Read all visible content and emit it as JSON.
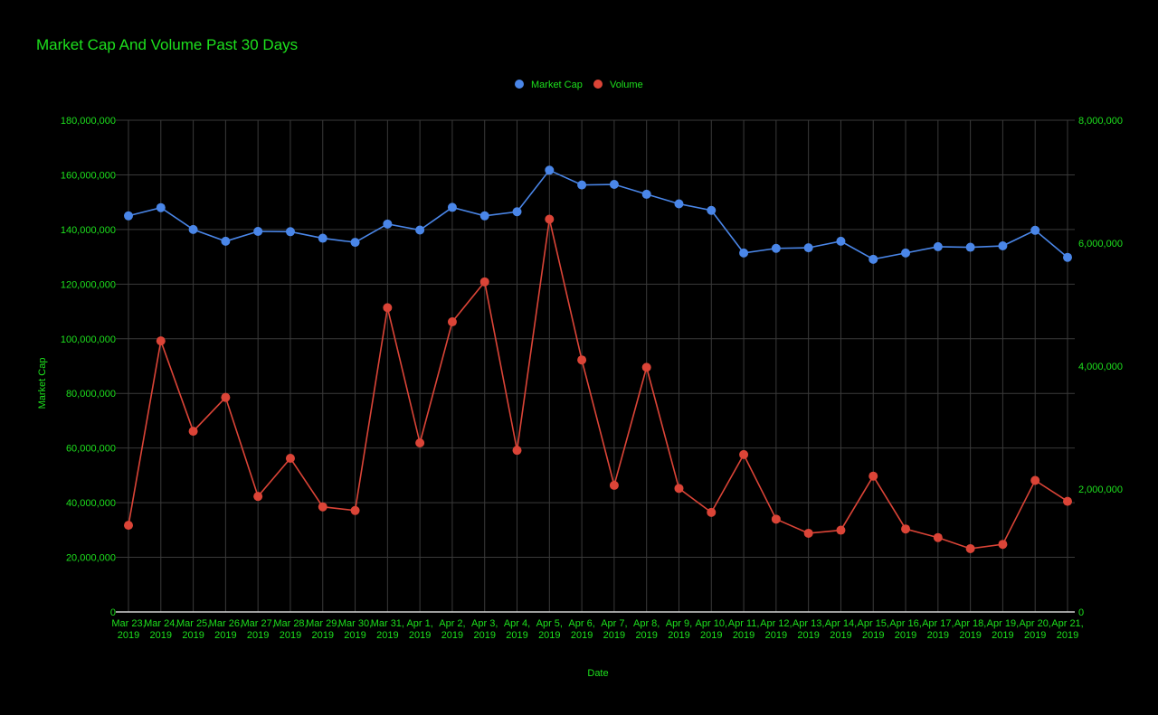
{
  "chart_data": {
    "type": "line",
    "title": "Market Cap And Volume Past 30 Days",
    "xlabel": "Date",
    "ylabel": "Market Cap",
    "y2label": "",
    "ylim": [
      0,
      180000000
    ],
    "y2lim": [
      0,
      8000000
    ],
    "y_ticks": [
      "0",
      "20,000,000",
      "40,000,000",
      "60,000,000",
      "80,000,000",
      "100,000,000",
      "120,000,000",
      "140,000,000",
      "160,000,000",
      "180,000,000"
    ],
    "y2_ticks": [
      "0",
      "2,000,000",
      "4,000,000",
      "6,000,000",
      "8,000,000"
    ],
    "grid": true,
    "legend": "top-center",
    "categories": [
      "Mar 23, 2019",
      "Mar 24, 2019",
      "Mar 25, 2019",
      "Mar 26, 2019",
      "Mar 27, 2019",
      "Mar 28, 2019",
      "Mar 29, 2019",
      "Mar 30, 2019",
      "Mar 31, 2019",
      "Apr 1, 2019",
      "Apr 2, 2019",
      "Apr 3, 2019",
      "Apr 4, 2019",
      "Apr 5, 2019",
      "Apr 6, 2019",
      "Apr 7, 2019",
      "Apr 8, 2019",
      "Apr 9, 2019",
      "Apr 10, 2019",
      "Apr 11, 2019",
      "Apr 12, 2019",
      "Apr 13, 2019",
      "Apr 14, 2019",
      "Apr 15, 2019",
      "Apr 16, 2019",
      "Apr 17, 2019",
      "Apr 18, 2019",
      "Apr 19, 2019",
      "Apr 20, 2019",
      "Apr 21, 2019"
    ],
    "series": [
      {
        "name": "Market Cap",
        "axis": "left",
        "color": "#4a86e8",
        "values": [
          145000000,
          148000000,
          140000000,
          135700000,
          139300000,
          139200000,
          136800000,
          135300000,
          142000000,
          139800000,
          148100000,
          145000000,
          146500000,
          161700000,
          156300000,
          156500000,
          152900000,
          149400000,
          147000000,
          131400000,
          133100000,
          133300000,
          135700000,
          129100000,
          131400000,
          133700000,
          133500000,
          134000000,
          139700000,
          129800000
        ]
      },
      {
        "name": "Volume",
        "axis": "right",
        "color": "#db4437",
        "values": [
          1410000,
          4410000,
          2940000,
          3490000,
          1880000,
          2500000,
          1710000,
          1650000,
          4950000,
          2750000,
          4720000,
          5370000,
          2630000,
          6390000,
          4100000,
          2060000,
          3980000,
          2010000,
          1620000,
          2560000,
          1510000,
          1280000,
          1330000,
          2210000,
          1350000,
          1210000,
          1030000,
          1100000,
          2140000,
          1800000
        ]
      }
    ]
  },
  "colors": {
    "background": "#000000",
    "text": "#1de01d",
    "grid": "#3a3a3a"
  }
}
